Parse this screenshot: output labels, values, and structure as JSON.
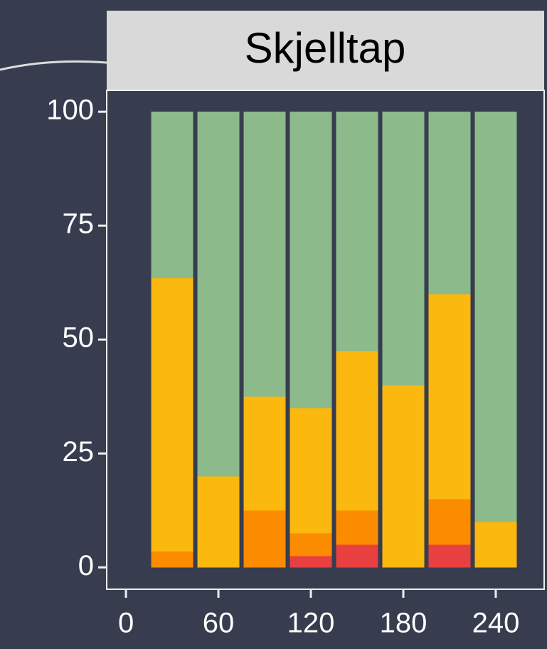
{
  "chart_data": {
    "type": "bar",
    "stacked": true,
    "title": "Skjelltap",
    "x": [
      30,
      60,
      90,
      120,
      150,
      180,
      210,
      240
    ],
    "series": [
      {
        "color": "#e84040",
        "values": [
          0,
          0,
          0,
          2.5,
          5,
          0,
          5,
          0
        ]
      },
      {
        "color": "#fb8c00",
        "values": [
          3.5,
          0,
          12.5,
          5,
          7.5,
          0,
          10,
          0
        ]
      },
      {
        "color": "#fbb80f",
        "values": [
          60,
          20,
          25,
          27.5,
          35,
          40,
          45,
          10
        ]
      },
      {
        "color": "#8cba8a",
        "values": [
          36.5,
          80,
          62.5,
          65,
          52.5,
          60,
          40,
          90
        ]
      }
    ],
    "xlim": [
      -12.5,
      271.4
    ],
    "xticks": [
      0,
      60,
      120,
      180,
      240
    ],
    "ylim": [
      -4.8,
      104.7
    ],
    "yticks": [
      0,
      25,
      50,
      75,
      100
    ]
  }
}
